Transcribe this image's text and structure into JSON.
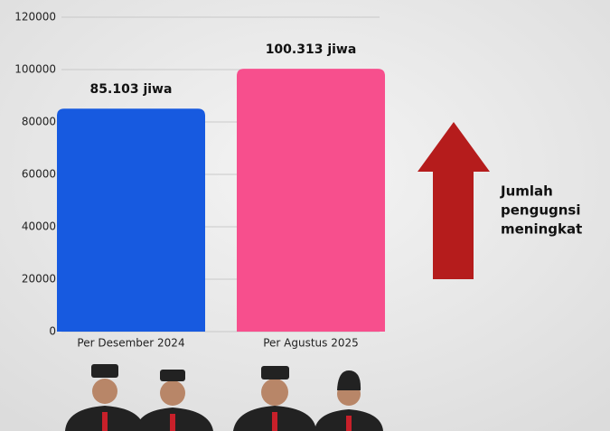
{
  "chart_data": {
    "type": "bar",
    "categories": [
      "Per Desember 2024",
      "Per Agustus 2025"
    ],
    "values": [
      85103,
      100313
    ],
    "value_labels": [
      "85.103 jiwa",
      "100.313 jiwa"
    ],
    "colors": [
      "#175ae0",
      "#f74f8d"
    ],
    "ylim": [
      0,
      120000
    ],
    "yticks": [
      0,
      20000,
      40000,
      60000,
      80000,
      100000,
      120000
    ],
    "grid": true,
    "annotation": [
      "Jumlah",
      "pengugnsi",
      "meningkat"
    ]
  }
}
